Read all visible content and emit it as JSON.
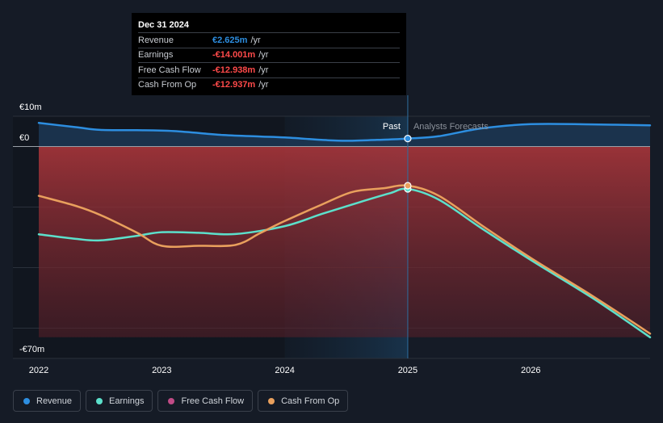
{
  "chart_data": {
    "type": "area",
    "title": "",
    "xlabel": "",
    "ylabel": "",
    "ylim": [
      -70,
      10
    ],
    "xlim": [
      2022.0,
      2026.97
    ],
    "y_tick_labels": {
      "top": "€10m",
      "zero": "€0",
      "bottom": "-€70m"
    },
    "x_ticks": [
      {
        "x": 2022,
        "label": "2022"
      },
      {
        "x": 2023,
        "label": "2023"
      },
      {
        "x": 2024,
        "label": "2024"
      },
      {
        "x": 2025,
        "label": "2025"
      },
      {
        "x": 2026,
        "label": "2026"
      }
    ],
    "divider_x": 2025,
    "highlight_range": [
      2024,
      2025
    ],
    "past_label": "Past",
    "forecast_label": "Analysts Forecasts",
    "series": [
      {
        "name": "Revenue",
        "color": "#2d8ee0",
        "x": [
          2022.0,
          2022.3,
          2022.5,
          2022.8,
          2023.1,
          2023.5,
          2023.8,
          2024.0,
          2024.3,
          2024.5,
          2024.75,
          2025.0,
          2025.25,
          2025.6,
          2026.0,
          2026.5,
          2026.97
        ],
        "values": [
          7.8,
          6.4,
          5.5,
          5.4,
          5.1,
          3.8,
          3.3,
          3.0,
          2.2,
          1.9,
          2.2,
          2.625,
          3.4,
          6.0,
          7.4,
          7.3,
          7.0
        ]
      },
      {
        "name": "Earnings",
        "color": "#5ce0cb",
        "x": [
          2022.0,
          2022.3,
          2022.5,
          2022.8,
          2023.0,
          2023.3,
          2023.6,
          2024.0,
          2024.3,
          2024.6,
          2024.85,
          2025.0,
          2025.25,
          2025.6,
          2026.0,
          2026.5,
          2026.97
        ],
        "values": [
          -29.0,
          -30.5,
          -31.0,
          -29.5,
          -28.3,
          -28.5,
          -28.9,
          -26.3,
          -22.3,
          -18.5,
          -15.5,
          -14.001,
          -17.5,
          -27.0,
          -37.5,
          -50.0,
          -63.0
        ]
      },
      {
        "name": "Cash From Op",
        "color": "#e9a05d",
        "x": [
          2022.0,
          2022.3,
          2022.5,
          2022.8,
          2023.0,
          2023.3,
          2023.6,
          2023.8,
          2024.0,
          2024.3,
          2024.55,
          2024.8,
          2025.0,
          2025.25,
          2025.6,
          2026.0,
          2026.5,
          2026.97
        ],
        "values": [
          -16.3,
          -19.6,
          -22.6,
          -28.5,
          -32.8,
          -32.8,
          -32.5,
          -28.6,
          -24.6,
          -19.2,
          -15.0,
          -13.8,
          -12.937,
          -16.2,
          -26.0,
          -36.8,
          -49.3,
          -61.8
        ]
      }
    ]
  },
  "tooltip": {
    "date": "Dec 31 2024",
    "unit": "/yr",
    "rows": [
      {
        "label": "Revenue",
        "value": "€2.625m",
        "color": "#2d8ee0"
      },
      {
        "label": "Earnings",
        "value": "-€14.001m",
        "color": "#ff4a4a"
      },
      {
        "label": "Free Cash Flow",
        "value": "-€12.938m",
        "color": "#ff4a4a"
      },
      {
        "label": "Cash From Op",
        "value": "-€12.937m",
        "color": "#ff4a4a"
      }
    ]
  },
  "legend": [
    {
      "label": "Revenue",
      "color": "#2d8ee0"
    },
    {
      "label": "Earnings",
      "color": "#5ce0cb"
    },
    {
      "label": "Free Cash Flow",
      "color": "#c04b86"
    },
    {
      "label": "Cash From Op",
      "color": "#e9a05d"
    }
  ]
}
